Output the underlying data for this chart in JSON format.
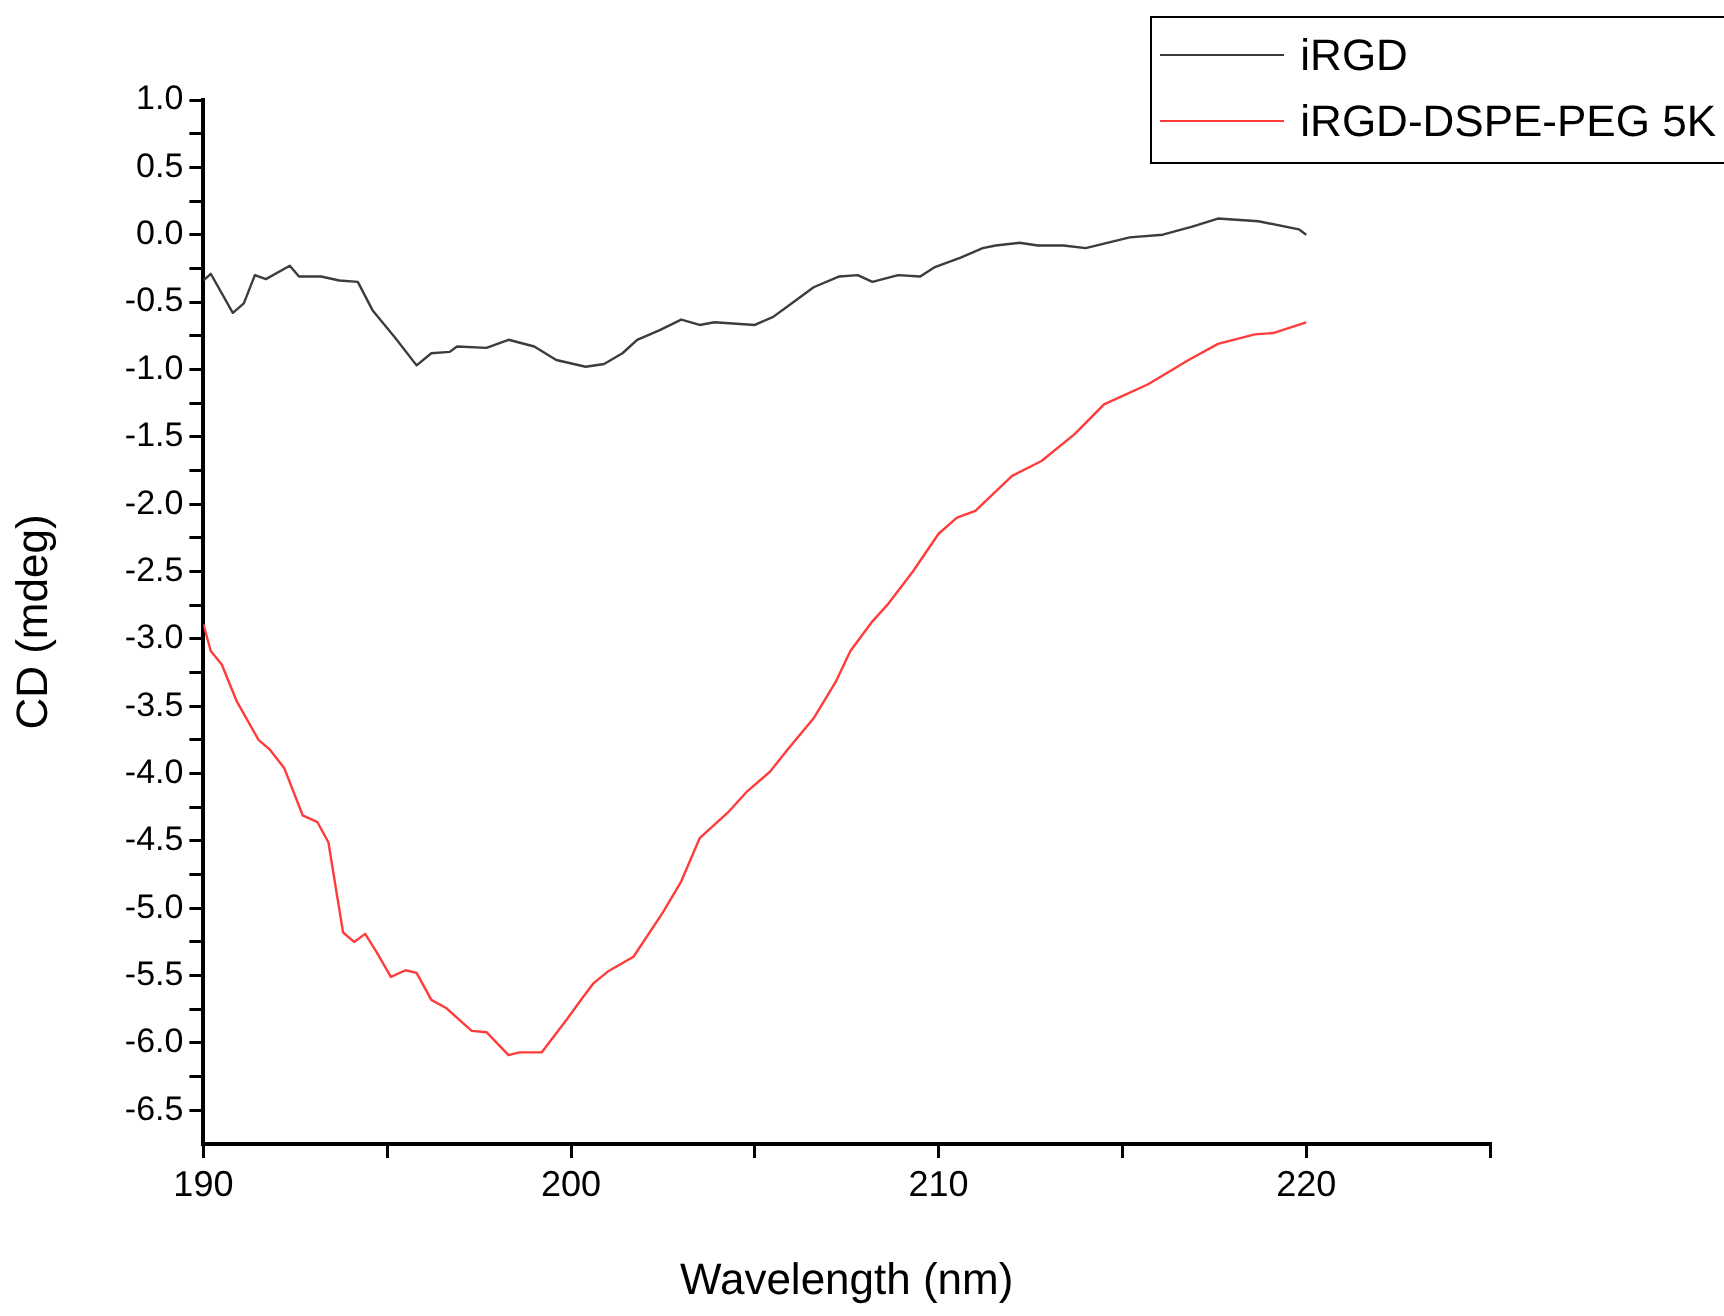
{
  "chart_data": {
    "type": "line",
    "xlabel": "Wavelength (nm)",
    "ylabel": "CD (mdeg)",
    "legend": "top right",
    "grid": false,
    "marker": "none",
    "line_style": "solid",
    "xlim": [
      190,
      225
    ],
    "xticks": [
      190,
      {
        "value": 195,
        "label": null
      },
      200,
      {
        "value": 205,
        "label": null
      },
      210,
      {
        "value": 215,
        "label": null
      },
      220,
      {
        "value": 225,
        "label": null
      }
    ],
    "ylim": [
      -6.75,
      1
    ],
    "yticks": [
      {
        "value": 1,
        "label": "1.0"
      },
      {
        "value": 0.75,
        "label": null
      },
      {
        "value": 0.5,
        "label": "0.5"
      },
      {
        "value": 0.25,
        "label": null
      },
      {
        "value": 0,
        "label": "0.0"
      },
      {
        "value": -0.25,
        "label": null
      },
      {
        "value": -0.5,
        "label": "-0.5"
      },
      {
        "value": -0.75,
        "label": null
      },
      {
        "value": -1,
        "label": "-1.0"
      },
      {
        "value": -1.25,
        "label": null
      },
      {
        "value": -1.5,
        "label": "-1.5"
      },
      {
        "value": -1.75,
        "label": null
      },
      {
        "value": -2,
        "label": "-2.0"
      },
      {
        "value": -2.25,
        "label": null
      },
      {
        "value": -2.5,
        "label": "-2.5"
      },
      {
        "value": -2.75,
        "label": null
      },
      {
        "value": -3,
        "label": "-3.0"
      },
      {
        "value": -3.25,
        "label": null
      },
      {
        "value": -3.5,
        "label": "-3.5"
      },
      {
        "value": -3.75,
        "label": null
      },
      {
        "value": -4,
        "label": "-4.0"
      },
      {
        "value": -4.25,
        "label": null
      },
      {
        "value": -4.5,
        "label": "-4.5"
      },
      {
        "value": -4.75,
        "label": null
      },
      {
        "value": -5,
        "label": "-5.0"
      },
      {
        "value": -5.25,
        "label": null
      },
      {
        "value": -5.5,
        "label": "-5.5"
      },
      {
        "value": -5.75,
        "label": null
      },
      {
        "value": -6,
        "label": "-6.0"
      },
      {
        "value": -6.25,
        "label": null
      },
      {
        "value": -6.5,
        "label": "-6.5"
      }
    ],
    "series": [
      {
        "name": "iRGD",
        "color": "#3c3c3c",
        "x": [
          190,
          190.2,
          190.8,
          191.1,
          191.4,
          191.7,
          192.35,
          192.6,
          193.2,
          193.7,
          194.2,
          194.6,
          195.2,
          195.8,
          196.2,
          196.7,
          196.9,
          197.7,
          198.3,
          199,
          199.6,
          200.4,
          200.9,
          201.4,
          201.8,
          202.4,
          203,
          203.5,
          203.9,
          205,
          205.5,
          206,
          206.6,
          207.3,
          207.8,
          208.2,
          208.9,
          209.5,
          209.9,
          210.6,
          211.2,
          211.55,
          212.2,
          212.7,
          213.4,
          214,
          215.2,
          216.1,
          216.9,
          217.6,
          218.7,
          219.8,
          220
        ],
        "values": [
          -0.34,
          -0.29,
          -0.58,
          -0.51,
          -0.3,
          -0.33,
          -0.23,
          -0.31,
          -0.31,
          -0.34,
          -0.35,
          -0.56,
          -0.76,
          -0.97,
          -0.88,
          -0.87,
          -0.83,
          -0.84,
          -0.78,
          -0.83,
          -0.93,
          -0.98,
          -0.96,
          -0.88,
          -0.78,
          -0.71,
          -0.63,
          -0.67,
          -0.65,
          -0.67,
          -0.61,
          -0.51,
          -0.39,
          -0.31,
          -0.3,
          -0.35,
          -0.3,
          -0.31,
          -0.24,
          -0.17,
          -0.1,
          -0.08,
          -0.06,
          -0.08,
          -0.08,
          -0.1,
          -0.02,
          0,
          0.06,
          0.12,
          0.1,
          0.04,
          0
        ]
      },
      {
        "name": "iRGD-DSPE-PEG 5K",
        "color": "#ff3b3b",
        "x": [
          190,
          190.2,
          190.5,
          190.9,
          191.5,
          191.8,
          192.2,
          192.7,
          193.1,
          193.4,
          193.8,
          194.1,
          194.4,
          194.7,
          195.1,
          195.5,
          195.8,
          196.2,
          196.6,
          197.3,
          197.7,
          198.3,
          198.6,
          199.2,
          199.9,
          200.3,
          200.6,
          201,
          201.7,
          202.5,
          203,
          203.5,
          204.3,
          204.8,
          205.4,
          205.9,
          206.6,
          207.2,
          207.6,
          208.2,
          208.6,
          209.3,
          210,
          210.5,
          211,
          212,
          212.8,
          213.7,
          214.5,
          215.7,
          216.8,
          217.6,
          218.6,
          219.1,
          220
        ],
        "values": [
          -2.89,
          -3.09,
          -3.19,
          -3.46,
          -3.75,
          -3.82,
          -3.96,
          -4.31,
          -4.36,
          -4.51,
          -5.18,
          -5.25,
          -5.19,
          -5.32,
          -5.51,
          -5.46,
          -5.48,
          -5.68,
          -5.74,
          -5.91,
          -5.92,
          -6.09,
          -6.07,
          -6.07,
          -5.82,
          -5.67,
          -5.56,
          -5.47,
          -5.36,
          -5.03,
          -4.8,
          -4.48,
          -4.28,
          -4.13,
          -3.99,
          -3.82,
          -3.59,
          -3.32,
          -3.09,
          -2.87,
          -2.75,
          -2.5,
          -2.22,
          -2.1,
          -2.05,
          -1.79,
          -1.68,
          -1.48,
          -1.26,
          -1.11,
          -0.93,
          -0.81,
          -0.74,
          -0.73,
          -0.65
        ]
      }
    ]
  }
}
